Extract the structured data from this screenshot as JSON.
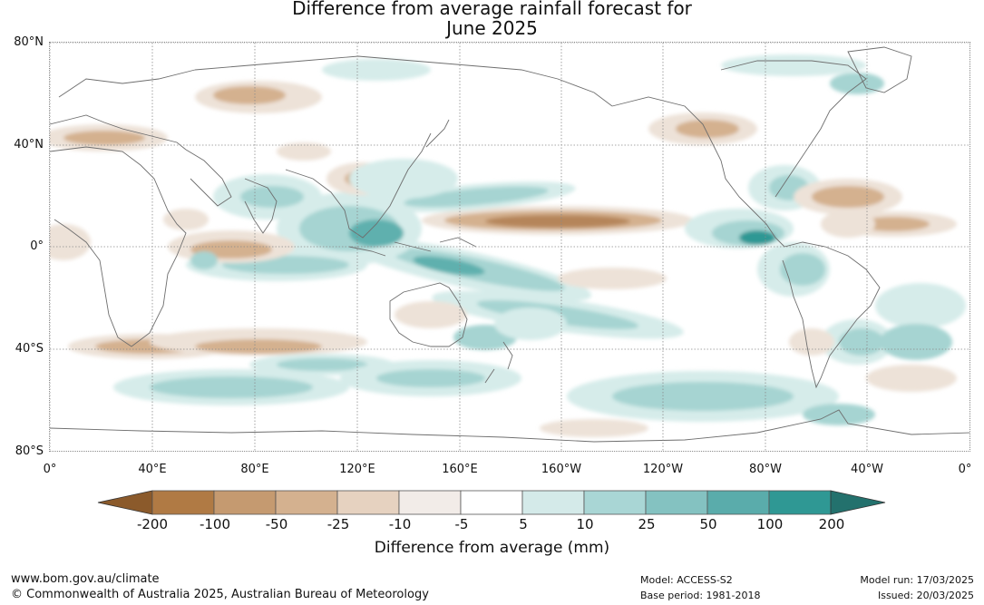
{
  "title": {
    "line1": "Difference from average rainfall forecast for",
    "line2": "June 2025"
  },
  "lat_labels": [
    "80°N",
    "40°N",
    "0°",
    "40°S",
    "80°S"
  ],
  "lon_labels": [
    "0°",
    "40°E",
    "80°E",
    "120°E",
    "160°E",
    "160°W",
    "120°W",
    "80°W",
    "40°W",
    "0°"
  ],
  "colorbar": {
    "title": "Difference from average (mm)",
    "tick_labels": [
      "-200",
      "-100",
      "-50",
      "-25",
      "-10",
      "-5",
      "5",
      "10",
      "25",
      "50",
      "100",
      "200"
    ],
    "colors": [
      "#8b5a2b",
      "#b07a44",
      "#c59a70",
      "#d4b18f",
      "#e6d2c0",
      "#f2ece8",
      "#ffffff",
      "#d4eae9",
      "#a9d6d5",
      "#84c2c1",
      "#5aacab",
      "#2f9894",
      "#23716d"
    ]
  },
  "footer": {
    "website": "www.bom.gov.au/climate",
    "copyright": "© Commonwealth of Australia 2025, Australian Bureau of Meteorology",
    "model": "Model: ACCESS-S2",
    "base_period": "Base period: 1981-2018",
    "model_run": "Model run: 17/03/2025",
    "issued": "Issued: 20/03/2025"
  },
  "field_colors": {
    "dry_strong": "#b5855a",
    "dry_mid": "#d4b18f",
    "dry_light": "#ede2d8",
    "wet_light": "#d6ecea",
    "wet_mid": "#a6d4d2",
    "wet_strong": "#5fb0ae",
    "wet_very": "#2f9894"
  }
}
